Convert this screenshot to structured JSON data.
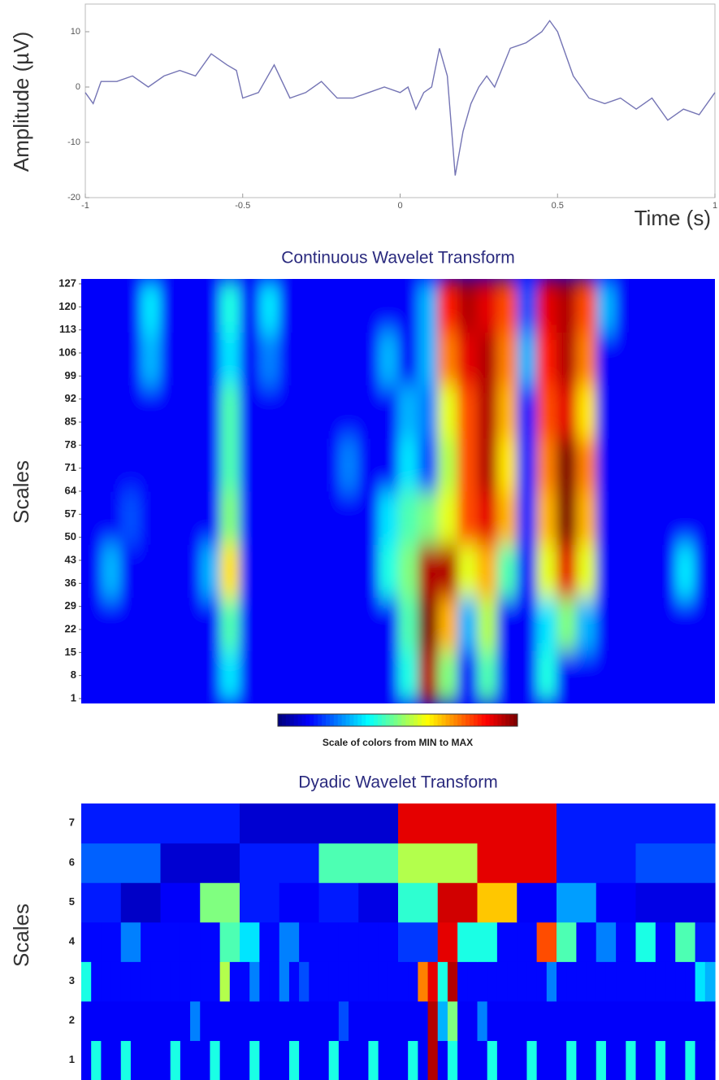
{
  "chart_data": [
    {
      "type": "line",
      "ylabel": "Amplitude (µV)",
      "xlabel": "Time (s)",
      "color": "#7474b4",
      "xlim": [
        -1,
        1
      ],
      "xticks": [
        -1,
        -0.5,
        0,
        0.5,
        1
      ],
      "ylim": [
        -20,
        15
      ],
      "yticks": [
        -20,
        -10,
        0,
        10
      ],
      "x": [
        -1,
        -0.975,
        -0.95,
        -0.9,
        -0.85,
        -0.8,
        -0.75,
        -0.7,
        -0.65,
        -0.6,
        -0.55,
        -0.52,
        -0.5,
        -0.45,
        -0.4,
        -0.35,
        -0.3,
        -0.25,
        -0.2,
        -0.15,
        -0.1,
        -0.05,
        0,
        0.025,
        0.05,
        0.075,
        0.1,
        0.125,
        0.15,
        0.175,
        0.2,
        0.225,
        0.25,
        0.275,
        0.3,
        0.35,
        0.4,
        0.45,
        0.475,
        0.5,
        0.55,
        0.6,
        0.65,
        0.7,
        0.75,
        0.8,
        0.85,
        0.9,
        0.95,
        1
      ],
      "values": [
        -1,
        -3,
        1,
        1,
        2,
        0,
        2,
        3,
        2,
        6,
        4,
        3,
        -2,
        -1,
        4,
        -2,
        -1,
        1,
        -2,
        -2,
        -1,
        0,
        -1,
        0,
        -4,
        -1,
        0,
        7,
        2,
        -16,
        -8,
        -3,
        0,
        2,
        0,
        7,
        8,
        10,
        12,
        10,
        2,
        -2,
        -3,
        -2,
        -4,
        -2,
        -6,
        -4,
        -5,
        -1
      ]
    },
    {
      "type": "heatmap",
      "title": "Continuous Wavelet Transform",
      "ylabel": "Scales",
      "colormap": "jet",
      "smooth": true,
      "colorbar_label": "Scale of colors from MIN to MAX",
      "ylim": [
        1,
        127
      ],
      "yticks": [
        1,
        8,
        15,
        22,
        29,
        36,
        43,
        50,
        57,
        64,
        71,
        78,
        85,
        92,
        99,
        106,
        113,
        120,
        127
      ],
      "values": [
        [
          0.12,
          0.12,
          0.12,
          0.12,
          0.12,
          0.12,
          0.12,
          0.35,
          0.12,
          0.12,
          0.12,
          0.12,
          0.12,
          0.12,
          0.12,
          0.12,
          0.4,
          0.95,
          0.5,
          0.12,
          0.45,
          0.12,
          0.12,
          0.4,
          0.12,
          0.12,
          0.12,
          0.12,
          0.12,
          0.12,
          0.12,
          0.12
        ],
        [
          0.12,
          0.12,
          0.12,
          0.12,
          0.12,
          0.12,
          0.12,
          0.45,
          0.12,
          0.12,
          0.12,
          0.12,
          0.12,
          0.12,
          0.12,
          0.12,
          0.45,
          1,
          0.7,
          0.3,
          0.55,
          0.12,
          0.12,
          0.35,
          0.5,
          0.3,
          0.12,
          0.12,
          0.12,
          0.12,
          0.12,
          0.12
        ],
        [
          0.12,
          0.3,
          0.12,
          0.12,
          0.12,
          0.12,
          0.3,
          0.65,
          0.12,
          0.12,
          0.12,
          0.12,
          0.12,
          0.12,
          0.12,
          0.4,
          0.5,
          0.95,
          0.95,
          0.6,
          0.7,
          0.45,
          0.12,
          0.6,
          0.9,
          0.6,
          0.12,
          0.12,
          0.12,
          0.12,
          0.35,
          0.12
        ],
        [
          0.12,
          0.12,
          0.2,
          0.12,
          0.12,
          0.12,
          0.12,
          0.5,
          0.12,
          0.12,
          0.12,
          0.12,
          0.12,
          0.12,
          0.12,
          0.35,
          0.45,
          0.5,
          0.6,
          0.8,
          0.9,
          0.7,
          0.15,
          0.7,
          1,
          0.7,
          0.12,
          0.12,
          0.12,
          0.12,
          0.12,
          0.12
        ],
        [
          0.12,
          0.12,
          0.12,
          0.12,
          0.12,
          0.12,
          0.12,
          0.45,
          0.12,
          0.12,
          0.12,
          0.12,
          0.12,
          0.25,
          0.12,
          0.12,
          0.35,
          0.2,
          0.55,
          0.8,
          0.95,
          0.65,
          0.15,
          0.75,
          1,
          0.75,
          0.12,
          0.12,
          0.12,
          0.12,
          0.12,
          0.12
        ],
        [
          0.12,
          0.12,
          0.12,
          0.12,
          0.12,
          0.12,
          0.12,
          0.45,
          0.12,
          0.12,
          0.12,
          0.12,
          0.12,
          0.12,
          0.12,
          0.12,
          0.3,
          0.25,
          0.6,
          0.8,
          0.95,
          0.7,
          0.15,
          0.8,
          0.9,
          0.65,
          0.12,
          0.12,
          0.12,
          0.12,
          0.12,
          0.12
        ],
        [
          0.12,
          0.12,
          0.12,
          0.3,
          0.12,
          0.12,
          0.12,
          0.35,
          0.12,
          0.25,
          0.12,
          0.12,
          0.12,
          0.12,
          0.12,
          0.3,
          0.12,
          0.3,
          0.75,
          0.9,
          0.95,
          0.75,
          0.3,
          0.85,
          0.95,
          0.75,
          0.12,
          0.12,
          0.12,
          0.12,
          0.12,
          0.12
        ],
        [
          0.12,
          0.12,
          0.12,
          0.35,
          0.12,
          0.12,
          0.12,
          0.4,
          0.12,
          0.35,
          0.12,
          0.12,
          0.12,
          0.12,
          0.12,
          0.12,
          0.12,
          0.3,
          0.85,
          0.95,
          0.9,
          0.8,
          0.2,
          0.9,
          0.95,
          0.8,
          0.3,
          0.12,
          0.12,
          0.12,
          0.12,
          0.12
        ]
      ]
    },
    {
      "type": "heatmap",
      "title": "Dyadic Wavelet Transform",
      "ylabel": "Scales",
      "colormap": "jet",
      "smooth": false,
      "categories": [
        "1",
        "2",
        "3",
        "4",
        "5",
        "6",
        "7"
      ],
      "values": [
        [
          0.12,
          0.4,
          0.12,
          0.12,
          0.4,
          0.12,
          0.12,
          0.12,
          0.12,
          0.4,
          0.12,
          0.12,
          0.12,
          0.4,
          0.12,
          0.12,
          0.12,
          0.4,
          0.12,
          0.12,
          0.12,
          0.4,
          0.12,
          0.12,
          0.12,
          0.4,
          0.12,
          0.12,
          0.12,
          0.4,
          0.12,
          0.12,
          0.12,
          0.4,
          0.12,
          0.95,
          0.12,
          0.4,
          0.12,
          0.12,
          0.12,
          0.4,
          0.12,
          0.12,
          0.12,
          0.4,
          0.12,
          0.12,
          0.12,
          0.4,
          0.12,
          0.12,
          0.4,
          0.12,
          0.12,
          0.4,
          0.12,
          0.12,
          0.4,
          0.12,
          0.12,
          0.4,
          0.12,
          0.12
        ],
        [
          0.12,
          0.12,
          0.12,
          0.12,
          0.12,
          0.12,
          0.12,
          0.12,
          0.12,
          0.12,
          0.12,
          0.25,
          0.12,
          0.12,
          0.12,
          0.12,
          0.12,
          0.12,
          0.12,
          0.12,
          0.12,
          0.12,
          0.12,
          0.12,
          0.12,
          0.12,
          0.2,
          0.12,
          0.12,
          0.12,
          0.12,
          0.12,
          0.12,
          0.12,
          0.12,
          0.95,
          0.3,
          0.5,
          0.12,
          0.12,
          0.25,
          0.12,
          0.12,
          0.12,
          0.12,
          0.12,
          0.12,
          0.12,
          0.12,
          0.12,
          0.12,
          0.12,
          0.12,
          0.12,
          0.12,
          0.12,
          0.12,
          0.12,
          0.12,
          0.12,
          0.12,
          0.12,
          0.12,
          0.12
        ],
        [
          0.4,
          0.13,
          0.13,
          0.13,
          0.13,
          0.13,
          0.13,
          0.13,
          0.13,
          0.13,
          0.13,
          0.13,
          0.13,
          0.13,
          0.55,
          0.13,
          0.13,
          0.25,
          0.13,
          0.13,
          0.25,
          0.13,
          0.2,
          0.13,
          0.13,
          0.13,
          0.13,
          0.13,
          0.13,
          0.13,
          0.13,
          0.13,
          0.13,
          0.13,
          0.75,
          0.9,
          0.4,
          0.95,
          0.13,
          0.13,
          0.13,
          0.13,
          0.13,
          0.13,
          0.13,
          0.13,
          0.13,
          0.25,
          0.13,
          0.13,
          0.13,
          0.13,
          0.13,
          0.13,
          0.13,
          0.13,
          0.13,
          0.13,
          0.13,
          0.13,
          0.13,
          0.13,
          0.35,
          0.3
        ],
        [
          0.13,
          0.13,
          0.25,
          0.13,
          0.13,
          0.13,
          0.13,
          0.45,
          0.35,
          0.13,
          0.25,
          0.13,
          0.13,
          0.13,
          0.13,
          0.13,
          0.18,
          0.18,
          0.9,
          0.4,
          0.4,
          0.13,
          0.13,
          0.8,
          0.45,
          0.13,
          0.25,
          0.13,
          0.4,
          0.13,
          0.45,
          0.15
        ],
        [
          0.15,
          0.07,
          0.12,
          0.5,
          0.15,
          0.12,
          0.15,
          0.1,
          0.42,
          0.92,
          0.68,
          0.12,
          0.28,
          0.12,
          0.1,
          0.1
        ],
        [
          0.22,
          0.08,
          0.15,
          0.45,
          0.55,
          0.9,
          0.15,
          0.2
        ],
        [
          0.15,
          0.15,
          0.08,
          0.08,
          0.9,
          0.9,
          0.15,
          0.15
        ]
      ]
    }
  ]
}
